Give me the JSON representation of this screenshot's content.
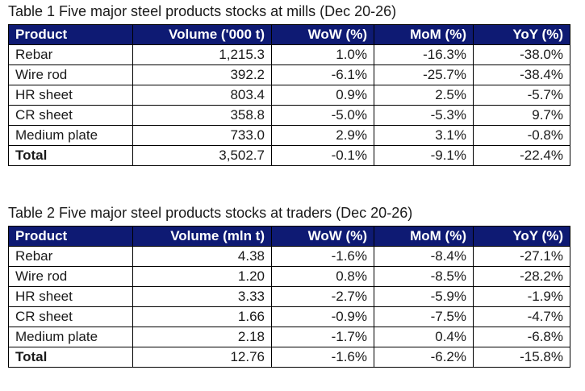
{
  "tables": [
    {
      "caption": "Table 1 Five major steel products stocks at mills (Dec 20-26)",
      "headers": [
        "Product",
        "Volume ('000 t)",
        "WoW (%)",
        "MoM (%)",
        "YoY (%)"
      ],
      "rows": [
        [
          "Rebar",
          "1,215.3",
          "1.0%",
          "-16.3%",
          "-38.0%"
        ],
        [
          "Wire rod",
          "392.2",
          "-6.1%",
          "-25.7%",
          "-38.4%"
        ],
        [
          "HR sheet",
          "803.4",
          "0.9%",
          "2.5%",
          "-5.7%"
        ],
        [
          "CR sheet",
          "358.8",
          "-5.0%",
          "-5.3%",
          "9.7%"
        ],
        [
          "Medium plate",
          "733.0",
          "2.9%",
          "3.1%",
          "-0.8%"
        ],
        [
          "Total",
          "3,502.7",
          "-0.1%",
          "-9.1%",
          "-22.4%"
        ]
      ]
    },
    {
      "caption": "Table 2 Five major steel products stocks at traders (Dec 20-26)",
      "headers": [
        "Product",
        "Volume (mln t)",
        "WoW (%)",
        "MoM (%)",
        "YoY (%)"
      ],
      "rows": [
        [
          "Rebar",
          "4.38",
          "-1.6%",
          "-8.4%",
          "-27.1%"
        ],
        [
          "Wire rod",
          "1.20",
          "0.8%",
          "-8.5%",
          "-28.2%"
        ],
        [
          "HR sheet",
          "3.33",
          "-2.7%",
          "-5.9%",
          "-1.9%"
        ],
        [
          "CR sheet",
          "1.66",
          "-0.9%",
          "-7.5%",
          "-4.7%"
        ],
        [
          "Medium plate",
          "2.18",
          "-1.7%",
          "0.4%",
          "-6.8%"
        ],
        [
          "Total",
          "12.76",
          "-1.6%",
          "-6.2%",
          "-15.8%"
        ]
      ]
    }
  ],
  "colors": {
    "header_background": "#0e1a73",
    "header_text": "#ffffff",
    "border": "#000000"
  }
}
